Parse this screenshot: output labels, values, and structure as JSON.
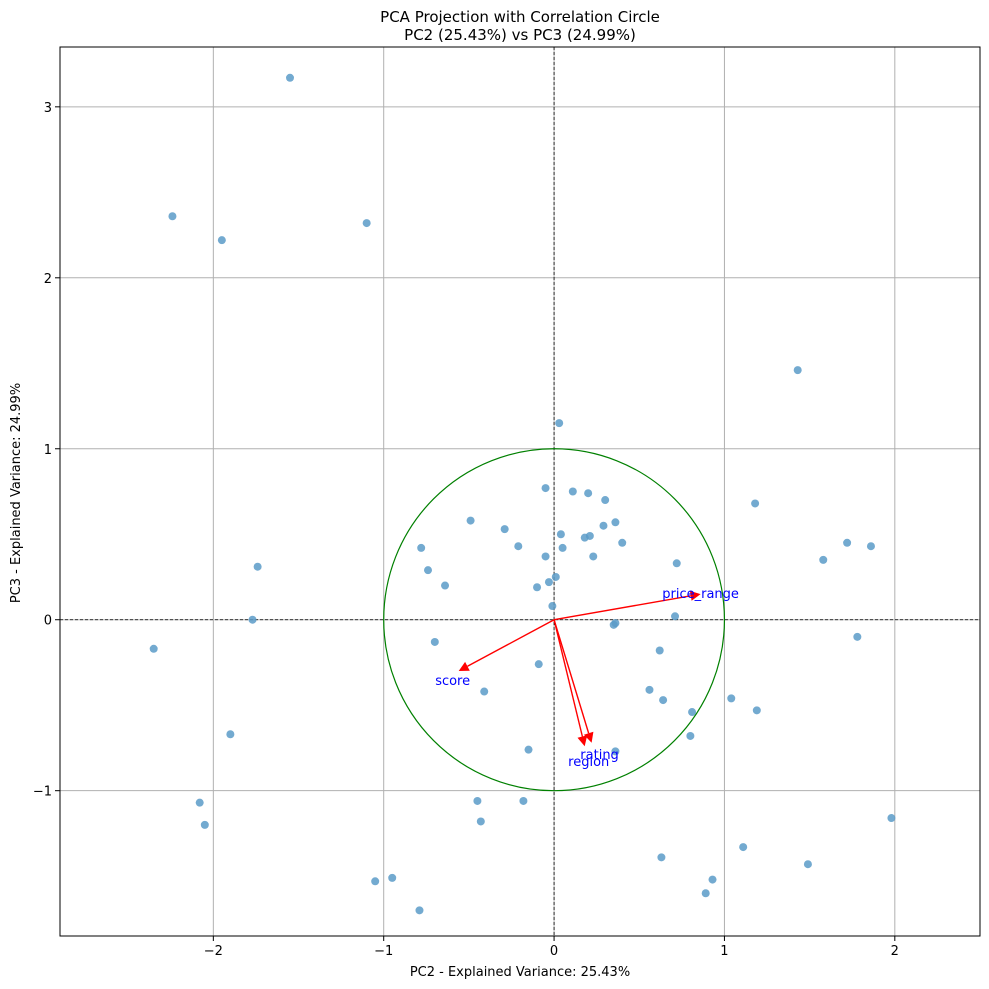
{
  "chart_data": {
    "type": "scatter",
    "title": "PCA Projection with Correlation Circle",
    "subtitle": "PC2 (25.43%) vs PC3 (24.99%)",
    "xlabel": "PC2 - Explained Variance: 25.43%",
    "ylabel": "PC3 - Explained Variance: 24.99%",
    "xlim": [
      -2.9,
      2.5
    ],
    "ylim": [
      -1.85,
      3.35
    ],
    "xticks": [
      -2,
      -1,
      0,
      1,
      2
    ],
    "yticks": [
      -1,
      0,
      1,
      2,
      3
    ],
    "xtick_labels": [
      "−2",
      "−1",
      "0",
      "1",
      "2"
    ],
    "ytick_labels": [
      "−1",
      "0",
      "1",
      "2",
      "3"
    ],
    "grid": true,
    "colors": {
      "points": "#5b9bc8",
      "arrows": "#ff0000",
      "circle": "#008000",
      "vector_labels": "#0000ff",
      "grid": "#b0b0b0",
      "zero_lines": "#000000"
    },
    "points": [
      {
        "x": -1.55,
        "y": 3.17
      },
      {
        "x": -2.24,
        "y": 2.36
      },
      {
        "x": -1.95,
        "y": 2.22
      },
      {
        "x": -1.1,
        "y": 2.32
      },
      {
        "x": 1.43,
        "y": 1.46
      },
      {
        "x": 0.03,
        "y": 1.15
      },
      {
        "x": -0.05,
        "y": 0.77
      },
      {
        "x": 0.11,
        "y": 0.75
      },
      {
        "x": 0.2,
        "y": 0.74
      },
      {
        "x": 0.3,
        "y": 0.7
      },
      {
        "x": 1.18,
        "y": 0.68
      },
      {
        "x": -0.49,
        "y": 0.58
      },
      {
        "x": -0.29,
        "y": 0.53
      },
      {
        "x": 0.36,
        "y": 0.57
      },
      {
        "x": 0.29,
        "y": 0.55
      },
      {
        "x": 0.04,
        "y": 0.5
      },
      {
        "x": 0.21,
        "y": 0.49
      },
      {
        "x": 0.18,
        "y": 0.48
      },
      {
        "x": -0.21,
        "y": 0.43
      },
      {
        "x": 0.05,
        "y": 0.42
      },
      {
        "x": 0.4,
        "y": 0.45
      },
      {
        "x": -0.78,
        "y": 0.42
      },
      {
        "x": -0.05,
        "y": 0.37
      },
      {
        "x": 0.23,
        "y": 0.37
      },
      {
        "x": 1.72,
        "y": 0.45
      },
      {
        "x": 1.86,
        "y": 0.43
      },
      {
        "x": 1.58,
        "y": 0.35
      },
      {
        "x": 0.72,
        "y": 0.33
      },
      {
        "x": -0.74,
        "y": 0.29
      },
      {
        "x": -1.74,
        "y": 0.31
      },
      {
        "x": 0.01,
        "y": 0.25
      },
      {
        "x": -0.03,
        "y": 0.22
      },
      {
        "x": -0.1,
        "y": 0.19
      },
      {
        "x": -0.64,
        "y": 0.2
      },
      {
        "x": -0.01,
        "y": 0.08
      },
      {
        "x": 0.71,
        "y": 0.02
      },
      {
        "x": -1.77,
        "y": 0.0
      },
      {
        "x": 0.36,
        "y": -0.02
      },
      {
        "x": 0.35,
        "y": -0.03
      },
      {
        "x": -0.7,
        "y": -0.13
      },
      {
        "x": -2.35,
        "y": -0.17
      },
      {
        "x": 0.62,
        "y": -0.18
      },
      {
        "x": 1.78,
        "y": -0.1
      },
      {
        "x": -0.09,
        "y": -0.26
      },
      {
        "x": -0.41,
        "y": -0.42
      },
      {
        "x": 0.56,
        "y": -0.41
      },
      {
        "x": 0.64,
        "y": -0.47
      },
      {
        "x": 1.04,
        "y": -0.46
      },
      {
        "x": 0.81,
        "y": -0.54
      },
      {
        "x": 1.19,
        "y": -0.53
      },
      {
        "x": -1.9,
        "y": -0.67
      },
      {
        "x": 0.8,
        "y": -0.68
      },
      {
        "x": -0.15,
        "y": -0.76
      },
      {
        "x": 0.36,
        "y": -0.77
      },
      {
        "x": -2.08,
        "y": -1.07
      },
      {
        "x": -0.45,
        "y": -1.06
      },
      {
        "x": -0.18,
        "y": -1.06
      },
      {
        "x": -2.05,
        "y": -1.2
      },
      {
        "x": -0.43,
        "y": -1.18
      },
      {
        "x": 1.98,
        "y": -1.16
      },
      {
        "x": 1.11,
        "y": -1.33
      },
      {
        "x": 0.63,
        "y": -1.39
      },
      {
        "x": 1.49,
        "y": -1.43
      },
      {
        "x": -1.05,
        "y": -1.53
      },
      {
        "x": -0.95,
        "y": -1.51
      },
      {
        "x": 0.93,
        "y": -1.52
      },
      {
        "x": 0.89,
        "y": -1.6
      },
      {
        "x": -0.79,
        "y": -1.7
      }
    ],
    "vectors": [
      {
        "name": "price_range",
        "x": 0.86,
        "y": 0.15
      },
      {
        "name": "score",
        "x": -0.56,
        "y": -0.3
      },
      {
        "name": "rating",
        "x": 0.22,
        "y": -0.72
      },
      {
        "name": "region",
        "x": 0.18,
        "y": -0.74
      }
    ],
    "correlation_circle_radius": 1
  }
}
